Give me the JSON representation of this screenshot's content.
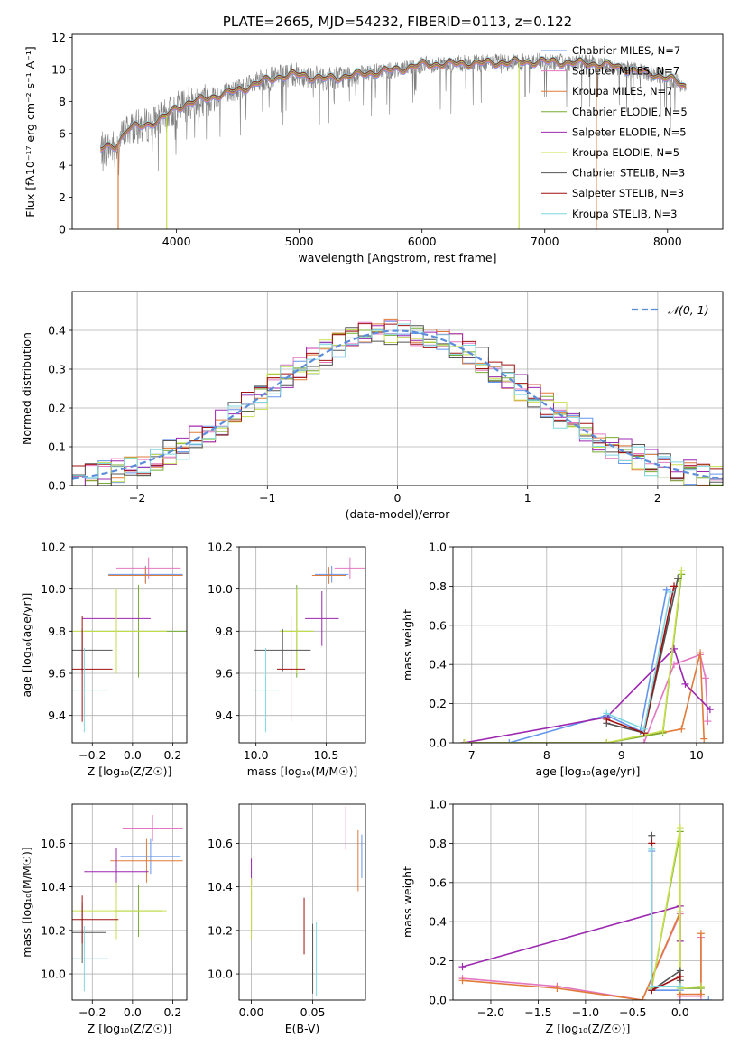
{
  "colors": {
    "Chabrier MILES": "#6495ed",
    "Salpeter MILES": "#e377c2",
    "Kroupa MILES": "#e07b39",
    "Chabrier ELODIE": "#77ac30",
    "Salpeter ELODIE": "#9c27b0",
    "Kroupa ELODIE": "#c8e04d",
    "Chabrier STELIB": "#555555",
    "Salpeter STELIB": "#a01010",
    "Kroupa STELIB": "#7fd8e0",
    "normal": "#5b8ddb",
    "spectrum": "#808080"
  },
  "chart_data": [
    {
      "type": "line",
      "title": "PLATE=2665, MJD=54232, FIBERID=0113, z=0.122",
      "xlabel": "wavelength [Angstrom, rest frame]",
      "ylabel": "Flux [fλ10⁻¹⁷ erg cm⁻² s⁻¹ A⁻¹]",
      "xlim": [
        3150,
        8450
      ],
      "ylim": [
        0,
        12.2
      ],
      "xticks": [
        "4000",
        "5000",
        "6000",
        "7000",
        "8000"
      ],
      "yticks": [
        "0",
        "2",
        "4",
        "6",
        "8",
        "10",
        "12"
      ],
      "grid": false,
      "legend_position": "upper-right",
      "legend": [
        "Chabrier MILES, N_SSP=7",
        "Salpeter MILES, N_SSP=7",
        "Kroupa MILES, N_SSP=7",
        "Chabrier ELODIE, N_SSP=5",
        "Salpeter ELODIE, N_SSP=5",
        "Kroupa ELODIE, N_SSP=5",
        "Chabrier STELIB, N_SSP=3",
        "Salpeter STELIB, N_SSP=3",
        "Kroupa STELIB, N_SSP=3"
      ],
      "continuum_anchor_x": [
        3380,
        3500,
        3600,
        3750,
        3900,
        4000,
        4100,
        4300,
        4500,
        4800,
        5000,
        5200,
        5500,
        5800,
        6000,
        6500,
        7000,
        7500,
        8000,
        8150
      ],
      "continuum_anchor_y": [
        5.0,
        5.2,
        6.3,
        6.5,
        7.0,
        7.6,
        7.9,
        8.3,
        8.7,
        9.5,
        9.7,
        9.4,
        9.7,
        10.0,
        10.3,
        10.4,
        10.5,
        10.3,
        9.5,
        8.9
      ],
      "dropouts": [
        {
          "series": "Kroupa MILES",
          "x": 3525
        },
        {
          "series": "Kroupa ELODIE",
          "x": 3920
        },
        {
          "series": "Kroupa ELODIE",
          "x": 6790
        },
        {
          "series": "Kroupa MILES",
          "x": 7420
        }
      ]
    },
    {
      "type": "step",
      "xlabel": "(data-model)/error",
      "ylabel": "Normed distribution",
      "xlim": [
        -2.5,
        2.5
      ],
      "ylim": [
        0,
        0.5
      ],
      "xticks": [
        "−2",
        "−1",
        "0",
        "1",
        "2"
      ],
      "yticks": [
        "0.0",
        "0.1",
        "0.2",
        "0.3",
        "0.4"
      ],
      "grid": true,
      "legend_position": "upper-right",
      "reference_curve": "N(0,1)",
      "bin_width": 0.1
    },
    {
      "type": "errorbar",
      "xlabel": "Z [log₁₀(Z/Z☉)]",
      "ylabel": "age  [log₁₀(age/yr)]",
      "xlim": [
        -0.3,
        0.27
      ],
      "ylim": [
        9.27,
        10.2
      ],
      "xticks": [
        "−0.2",
        "0.0",
        "0.2"
      ],
      "yticks": [
        "9.4",
        "9.6",
        "9.8",
        "10.0",
        "10.2"
      ],
      "grid": true,
      "points": [
        {
          "series": "Chabrier MILES",
          "x": 0.065,
          "y": 10.07,
          "xerr": 0.185,
          "yerr": 0.04
        },
        {
          "series": "Salpeter MILES",
          "x": 0.08,
          "y": 10.1,
          "xerr": 0.16,
          "yerr": 0.05
        },
        {
          "series": "Kroupa MILES",
          "x": 0.065,
          "y": 10.065,
          "xerr": 0.185,
          "yerr": 0.04
        },
        {
          "series": "Chabrier ELODIE",
          "x": 0.03,
          "y": 9.8,
          "xerr": 0.27,
          "yerr": 0.22
        },
        {
          "series": "Salpeter ELODIE",
          "x": -0.08,
          "y": 9.86,
          "xerr": 0.17,
          "yerr": 0.13
        },
        {
          "series": "Kroupa ELODIE",
          "x": -0.08,
          "y": 9.8,
          "xerr": 0.25,
          "yerr": 0.2
        },
        {
          "series": "Chabrier STELIB",
          "x": -0.25,
          "y": 9.71,
          "xerr": 0.15,
          "yerr": 0.1
        },
        {
          "series": "Salpeter STELIB",
          "x": -0.25,
          "y": 9.62,
          "xerr": 0.15,
          "yerr": 0.25
        },
        {
          "series": "Kroupa STELIB",
          "x": -0.24,
          "y": 9.52,
          "xerr": 0.12,
          "yerr": 0.2
        }
      ]
    },
    {
      "type": "errorbar",
      "xlabel": "mass [log₁₀(M/M☉)]",
      "ylabel": "",
      "xlim": [
        9.88,
        10.78
      ],
      "ylim": [
        9.27,
        10.2
      ],
      "xticks": [
        "10.0",
        "10.5"
      ],
      "yticks": [
        "9.4",
        "9.6",
        "9.8",
        "10.0",
        "10.2"
      ],
      "grid": true,
      "points": [
        {
          "series": "Chabrier MILES",
          "x": 10.54,
          "y": 10.07,
          "xerr": 0.12,
          "yerr": 0.04
        },
        {
          "series": "Salpeter MILES",
          "x": 10.67,
          "y": 10.1,
          "xerr": 0.11,
          "yerr": 0.05
        },
        {
          "series": "Kroupa MILES",
          "x": 10.52,
          "y": 10.065,
          "xerr": 0.12,
          "yerr": 0.04
        },
        {
          "series": "Chabrier ELODIE",
          "x": 10.29,
          "y": 9.8,
          "xerr": 0.12,
          "yerr": 0.22
        },
        {
          "series": "Salpeter ELODIE",
          "x": 10.47,
          "y": 9.86,
          "xerr": 0.12,
          "yerr": 0.13
        },
        {
          "series": "Kroupa ELODIE",
          "x": 10.29,
          "y": 9.8,
          "xerr": 0.12,
          "yerr": 0.2
        },
        {
          "series": "Chabrier STELIB",
          "x": 10.19,
          "y": 9.71,
          "xerr": 0.2,
          "yerr": 0.1
        },
        {
          "series": "Salpeter STELIB",
          "x": 10.25,
          "y": 9.62,
          "xerr": 0.1,
          "yerr": 0.25
        },
        {
          "series": "Kroupa STELIB",
          "x": 10.07,
          "y": 9.52,
          "xerr": 0.1,
          "yerr": 0.2
        }
      ]
    },
    {
      "type": "line",
      "xlabel": "age  [log₁₀(age/yr)]",
      "ylabel": "mass weight",
      "xlim": [
        6.75,
        10.35
      ],
      "ylim": [
        0,
        1.0
      ],
      "xticks": [
        "7",
        "8",
        "9",
        "10"
      ],
      "yticks": [
        "0.0",
        "0.2",
        "0.4",
        "0.6",
        "0.8",
        "1.0"
      ],
      "grid": true,
      "series": [
        {
          "series": "Chabrier MILES",
          "x": [
            6.9,
            7.5,
            8.8,
            9.25,
            9.6
          ],
          "y": [
            0.0,
            0.0,
            0.14,
            0.06,
            0.78
          ]
        },
        {
          "series": "Salpeter MILES",
          "x": [
            9.3,
            9.7,
            10.05,
            10.12,
            10.15
          ],
          "y": [
            0.0,
            0.4,
            0.45,
            0.33,
            0.11
          ]
        },
        {
          "series": "Kroupa MILES",
          "x": [
            6.9,
            8.8,
            9.8,
            10.05,
            10.1
          ],
          "y": [
            0.0,
            0.0,
            0.07,
            0.46,
            0.02
          ]
        },
        {
          "series": "Chabrier ELODIE",
          "x": [
            6.9,
            8.8,
            9.55,
            9.8
          ],
          "y": [
            0.0,
            0.0,
            0.05,
            0.86
          ]
        },
        {
          "series": "Salpeter ELODIE",
          "x": [
            6.9,
            8.8,
            9.7,
            9.85,
            10.18
          ],
          "y": [
            0.0,
            0.13,
            0.48,
            0.3,
            0.17
          ]
        },
        {
          "series": "Kroupa ELODIE",
          "x": [
            6.9,
            8.8,
            9.55,
            9.8
          ],
          "y": [
            0.0,
            0.0,
            0.06,
            0.88
          ]
        },
        {
          "series": "Chabrier STELIB",
          "x": [
            8.8,
            9.3,
            9.75
          ],
          "y": [
            0.1,
            0.05,
            0.84
          ]
        },
        {
          "series": "Salpeter STELIB",
          "x": [
            8.8,
            9.3,
            9.7
          ],
          "y": [
            0.12,
            0.05,
            0.8
          ]
        },
        {
          "series": "Kroupa STELIB",
          "x": [
            8.8,
            9.3,
            9.65
          ],
          "y": [
            0.15,
            0.07,
            0.77
          ]
        }
      ]
    },
    {
      "type": "errorbar",
      "xlabel": "Z [log₁₀(Z/Z☉)]",
      "ylabel": "mass [log₁₀(M/M☉)]",
      "xlim": [
        -0.3,
        0.27
      ],
      "ylim": [
        9.88,
        10.78
      ],
      "xticks": [
        "−0.2",
        "0.0",
        "0.2"
      ],
      "yticks": [
        "10.0",
        "10.2",
        "10.4",
        "10.6"
      ],
      "grid": true,
      "points": [
        {
          "series": "Chabrier MILES",
          "x": 0.09,
          "y": 10.54,
          "xerr": 0.15,
          "yerr": 0.08
        },
        {
          "series": "Salpeter MILES",
          "x": 0.1,
          "y": 10.67,
          "xerr": 0.15,
          "yerr": 0.06
        },
        {
          "series": "Kroupa MILES",
          "x": 0.07,
          "y": 10.52,
          "xerr": 0.18,
          "yerr": 0.1
        },
        {
          "series": "Chabrier ELODIE",
          "x": 0.03,
          "y": 10.29,
          "xerr": 0.12,
          "yerr": 0.12
        },
        {
          "series": "Salpeter ELODIE",
          "x": -0.08,
          "y": 10.47,
          "xerr": 0.16,
          "yerr": 0.11
        },
        {
          "series": "Kroupa ELODIE",
          "x": -0.08,
          "y": 10.29,
          "xerr": 0.25,
          "yerr": 0.13
        },
        {
          "series": "Chabrier STELIB",
          "x": -0.25,
          "y": 10.19,
          "xerr": 0.12,
          "yerr": 0.14
        },
        {
          "series": "Salpeter STELIB",
          "x": -0.25,
          "y": 10.25,
          "xerr": 0.18,
          "yerr": 0.11
        },
        {
          "series": "Kroupa STELIB",
          "x": -0.24,
          "y": 10.07,
          "xerr": 0.12,
          "yerr": 0.15
        }
      ]
    },
    {
      "type": "errorbar",
      "xlabel": "E(B-V)",
      "ylabel": "",
      "xlim": [
        -0.01,
        0.093
      ],
      "ylim": [
        9.88,
        10.78
      ],
      "xticks": [
        "0.00",
        "0.05"
      ],
      "yticks": [
        "10.0",
        "10.2",
        "10.4",
        "10.6"
      ],
      "grid": true,
      "points": [
        {
          "series": "Chabrier MILES",
          "x": 0.09,
          "y": 10.54,
          "xerr": 0,
          "yerr": 0.1
        },
        {
          "series": "Salpeter MILES",
          "x": 0.077,
          "y": 10.67,
          "xerr": 0,
          "yerr": 0.1
        },
        {
          "series": "Kroupa MILES",
          "x": 0.087,
          "y": 10.52,
          "xerr": 0,
          "yerr": 0.14
        },
        {
          "series": "Chabrier ELODIE",
          "x": 0.0,
          "y": 10.29,
          "xerr": 0,
          "yerr": 0.1
        },
        {
          "series": "Salpeter ELODIE",
          "x": 0.0,
          "y": 10.47,
          "xerr": 0,
          "yerr": 0.06
        },
        {
          "series": "Kroupa ELODIE",
          "x": 0.0,
          "y": 10.3,
          "xerr": 0,
          "yerr": 0.14
        },
        {
          "series": "Chabrier STELIB",
          "x": 0.05,
          "y": 10.07,
          "xerr": 0,
          "yerr": 0.16
        },
        {
          "series": "Salpeter STELIB",
          "x": 0.043,
          "y": 10.22,
          "xerr": 0,
          "yerr": 0.13
        },
        {
          "series": "Kroupa STELIB",
          "x": 0.053,
          "y": 10.07,
          "xerr": 0,
          "yerr": 0.17
        }
      ]
    },
    {
      "type": "line",
      "xlabel": "Z [log₁₀(Z/Z☉)]",
      "ylabel": "mass weight",
      "xlim": [
        -2.4,
        0.45
      ],
      "ylim": [
        0,
        1.0
      ],
      "xticks": [
        "−2.0",
        "−1.5",
        "−1.0",
        "−0.5",
        "0.0"
      ],
      "yticks": [
        "0.0",
        "0.2",
        "0.4",
        "0.6",
        "0.8",
        "1.0"
      ],
      "grid": true,
      "series": [
        {
          "series": "Chabrier MILES",
          "x": [
            -0.3,
            -0.3,
            0.0,
            0.0,
            0.3
          ],
          "y": [
            0.76,
            0.05,
            0.05,
            0.0,
            0.0
          ]
        },
        {
          "series": "Salpeter MILES",
          "x": [
            -2.3,
            -1.3,
            -0.4,
            0.0,
            0.0,
            0.22,
            0.22
          ],
          "y": [
            0.11,
            0.07,
            0.0,
            0.44,
            0.02,
            0.02,
            0.32
          ]
        },
        {
          "series": "Kroupa MILES",
          "x": [
            -2.3,
            -1.3,
            -0.4,
            0.0,
            0.0,
            0.22,
            0.22
          ],
          "y": [
            0.1,
            0.06,
            0.0,
            0.45,
            0.03,
            0.03,
            0.34
          ]
        },
        {
          "series": "Chabrier ELODIE",
          "x": [
            -0.3,
            0.0,
            0.0,
            0.22
          ],
          "y": [
            0.06,
            0.86,
            0.06,
            0.06
          ]
        },
        {
          "series": "Salpeter ELODIE",
          "x": [
            -2.3,
            0.0,
            0.0
          ],
          "y": [
            0.17,
            0.48,
            0.3
          ]
        },
        {
          "series": "Kroupa ELODIE",
          "x": [
            -0.3,
            0.0,
            0.0,
            0.22
          ],
          "y": [
            0.06,
            0.88,
            0.06,
            0.07
          ]
        },
        {
          "series": "Chabrier STELIB",
          "x": [
            -0.3,
            -0.3,
            0.0,
            0.0
          ],
          "y": [
            0.84,
            0.05,
            0.15,
            0.1
          ]
        },
        {
          "series": "Salpeter STELIB",
          "x": [
            -0.3,
            -0.3,
            0.0
          ],
          "y": [
            0.8,
            0.05,
            0.12
          ]
        },
        {
          "series": "Kroupa STELIB",
          "x": [
            -0.3,
            -0.3,
            0.0
          ],
          "y": [
            0.77,
            0.07,
            0.07
          ]
        }
      ]
    }
  ]
}
